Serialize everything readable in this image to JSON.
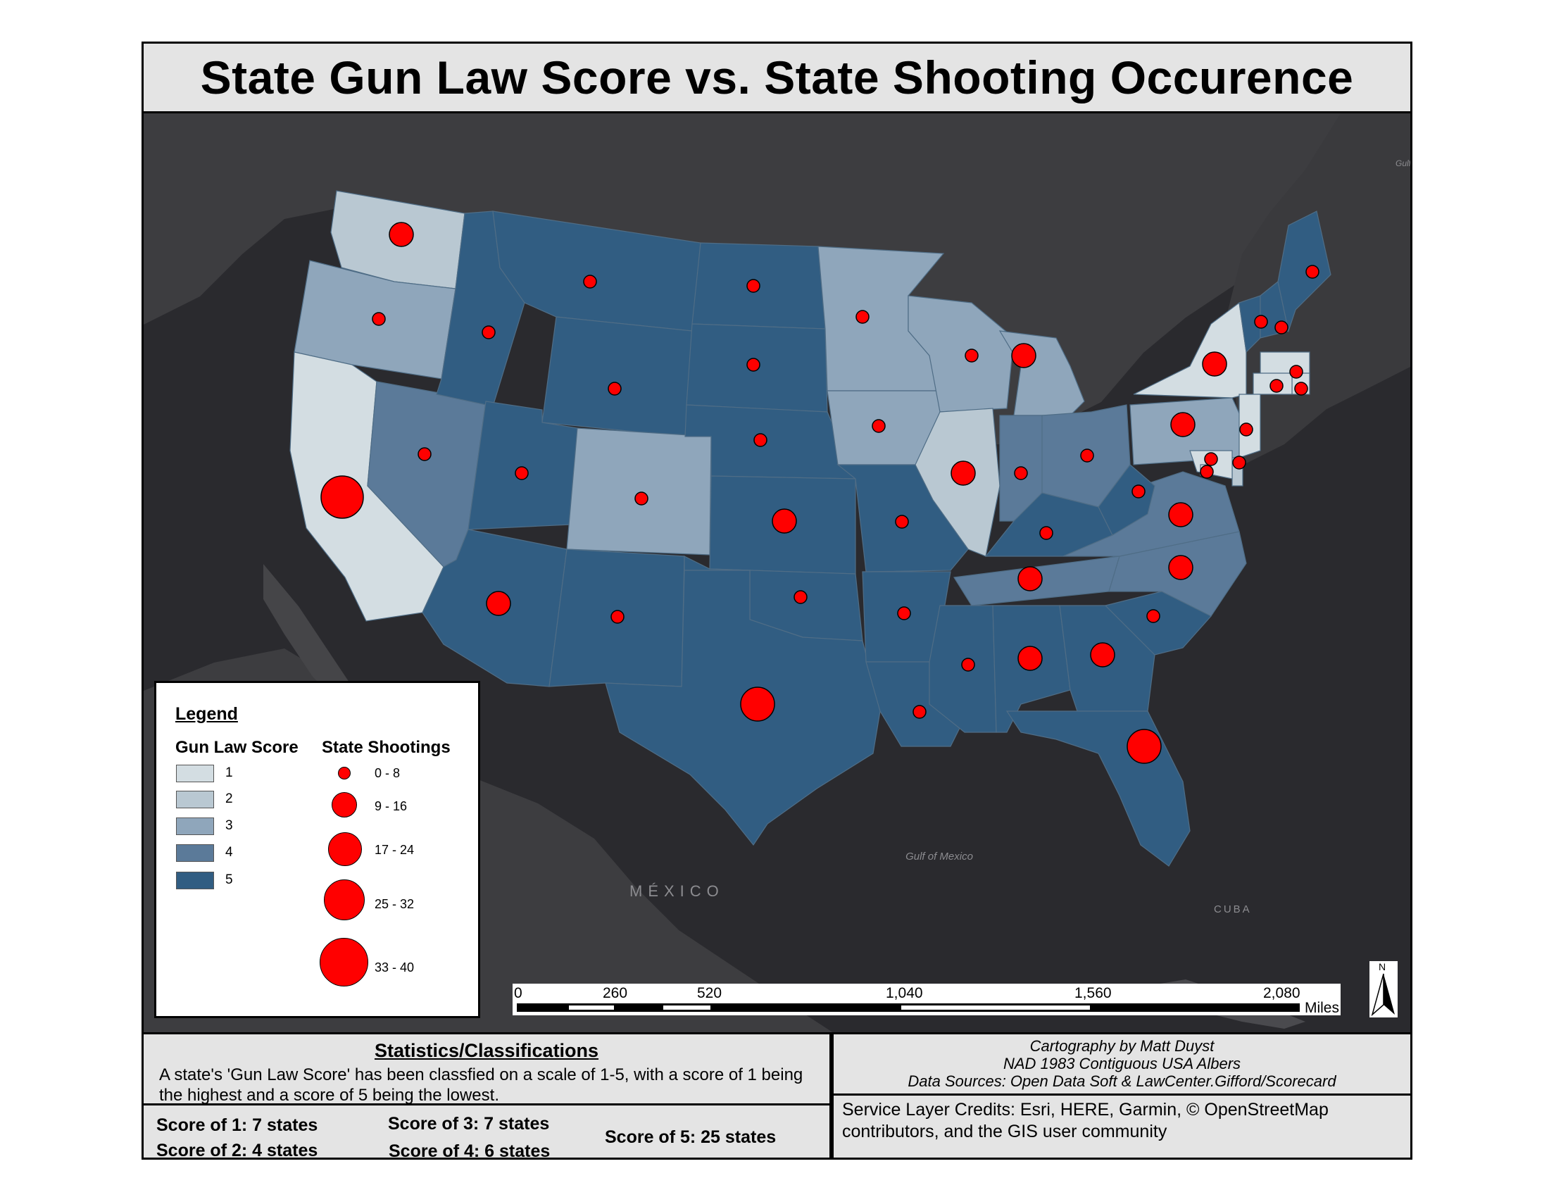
{
  "title": "State Gun Law Score vs. State Shooting Occurence",
  "colors": {
    "score_1": "#d3dde2",
    "score_2": "#b9c8d2",
    "score_3": "#8fa6bb",
    "score_4": "#5b7a99",
    "score_5": "#315d82",
    "shooting": "#ff0000",
    "basemap_land": "#3b3b3e",
    "basemap_water": "#2a2a2e"
  },
  "basemap_labels": {
    "mexico": "MÉXICO",
    "gulf": "Gulf of Mexico",
    "cuba": "CUBA",
    "gulf_top_right": "Gulf of Law"
  },
  "legend": {
    "title": "Legend",
    "gun_law_heading": "Gun Law Score",
    "shootings_heading": "State Shootings",
    "gun_law_classes": [
      "1",
      "2",
      "3",
      "4",
      "5"
    ],
    "shooting_classes": [
      "0 - 8",
      "9 - 16",
      "17 - 24",
      "25 - 32",
      "33 - 40"
    ]
  },
  "scalebar": {
    "ticks": [
      "0",
      "260",
      "520",
      "1,040",
      "1,560",
      "2,080"
    ],
    "units": "Miles"
  },
  "north_arrow": {
    "letter": "N"
  },
  "statistics": {
    "title": "Statistics/Classifications",
    "description": "A state's 'Gun Law Score' has been classfied on a scale of 1-5, with a score of 1 being the highest and a score of 5 being the lowest.",
    "counts": [
      "Score of 1: 7 states",
      "Score of 2: 4 states",
      "Score of 3: 7 states",
      "Score of 4: 6 states",
      "Score of 5: 25 states"
    ]
  },
  "credits": {
    "cartography": "Cartography by Matt Duyst",
    "projection": "NAD 1983 Contiguous USA Albers",
    "sources": "Data Sources: Open Data Soft & LawCenter.Gifford/Scorecard",
    "service": "Service Layer Credits: Esri, HERE, Garmin, © OpenStreetMap contributors, and the GIS user community"
  },
  "states": [
    {
      "name": "Washington",
      "score": 2,
      "shoot_class": 2
    },
    {
      "name": "Oregon",
      "score": 3,
      "shoot_class": 1
    },
    {
      "name": "California",
      "score": 1,
      "shoot_class": 4
    },
    {
      "name": "Nevada",
      "score": 4,
      "shoot_class": 1
    },
    {
      "name": "Idaho",
      "score": 5,
      "shoot_class": 1
    },
    {
      "name": "Montana",
      "score": 5,
      "shoot_class": 1
    },
    {
      "name": "Wyoming",
      "score": 5,
      "shoot_class": 1
    },
    {
      "name": "Utah",
      "score": 5,
      "shoot_class": 1
    },
    {
      "name": "Colorado",
      "score": 3,
      "shoot_class": 1
    },
    {
      "name": "Arizona",
      "score": 5,
      "shoot_class": 2
    },
    {
      "name": "New Mexico",
      "score": 5,
      "shoot_class": 1
    },
    {
      "name": "North Dakota",
      "score": 5,
      "shoot_class": 1
    },
    {
      "name": "South Dakota",
      "score": 5,
      "shoot_class": 1
    },
    {
      "name": "Nebraska",
      "score": 5,
      "shoot_class": 1
    },
    {
      "name": "Kansas",
      "score": 5,
      "shoot_class": 2
    },
    {
      "name": "Oklahoma",
      "score": 5,
      "shoot_class": 1
    },
    {
      "name": "Texas",
      "score": 5,
      "shoot_class": 3
    },
    {
      "name": "Minnesota",
      "score": 3,
      "shoot_class": 1
    },
    {
      "name": "Iowa",
      "score": 3,
      "shoot_class": 1
    },
    {
      "name": "Missouri",
      "score": 5,
      "shoot_class": 1
    },
    {
      "name": "Arkansas",
      "score": 5,
      "shoot_class": 1
    },
    {
      "name": "Louisiana",
      "score": 5,
      "shoot_class": 1
    },
    {
      "name": "Wisconsin",
      "score": 3,
      "shoot_class": 1
    },
    {
      "name": "Illinois",
      "score": 2,
      "shoot_class": 2
    },
    {
      "name": "Michigan",
      "score": 3,
      "shoot_class": 2
    },
    {
      "name": "Indiana",
      "score": 4,
      "shoot_class": 1
    },
    {
      "name": "Ohio",
      "score": 4,
      "shoot_class": 1
    },
    {
      "name": "Kentucky",
      "score": 5,
      "shoot_class": 1
    },
    {
      "name": "Tennessee",
      "score": 4,
      "shoot_class": 2
    },
    {
      "name": "Mississippi",
      "score": 5,
      "shoot_class": 1
    },
    {
      "name": "Alabama",
      "score": 5,
      "shoot_class": 2
    },
    {
      "name": "Georgia",
      "score": 5,
      "shoot_class": 2
    },
    {
      "name": "Florida",
      "score": 5,
      "shoot_class": 3
    },
    {
      "name": "South Carolina",
      "score": 5,
      "shoot_class": 1
    },
    {
      "name": "North Carolina",
      "score": 4,
      "shoot_class": 2
    },
    {
      "name": "Virginia",
      "score": 4,
      "shoot_class": 2
    },
    {
      "name": "West Virginia",
      "score": 5,
      "shoot_class": 1
    },
    {
      "name": "Pennsylvania",
      "score": 3,
      "shoot_class": 2
    },
    {
      "name": "New York",
      "score": 1,
      "shoot_class": 2
    },
    {
      "name": "Vermont",
      "score": 5,
      "shoot_class": 1
    },
    {
      "name": "New Hampshire",
      "score": 5,
      "shoot_class": 1
    },
    {
      "name": "Maine",
      "score": 5,
      "shoot_class": 1
    },
    {
      "name": "Massachusetts",
      "score": 1,
      "shoot_class": 1
    },
    {
      "name": "Rhode Island",
      "score": 1,
      "shoot_class": 1
    },
    {
      "name": "Connecticut",
      "score": 1,
      "shoot_class": 1
    },
    {
      "name": "New Jersey",
      "score": 1,
      "shoot_class": 1
    },
    {
      "name": "Delaware",
      "score": 2,
      "shoot_class": 1
    },
    {
      "name": "Maryland",
      "score": 1,
      "shoot_class": 1
    },
    {
      "name": "District of Columbia",
      "score": 1,
      "shoot_class": 1
    }
  ]
}
